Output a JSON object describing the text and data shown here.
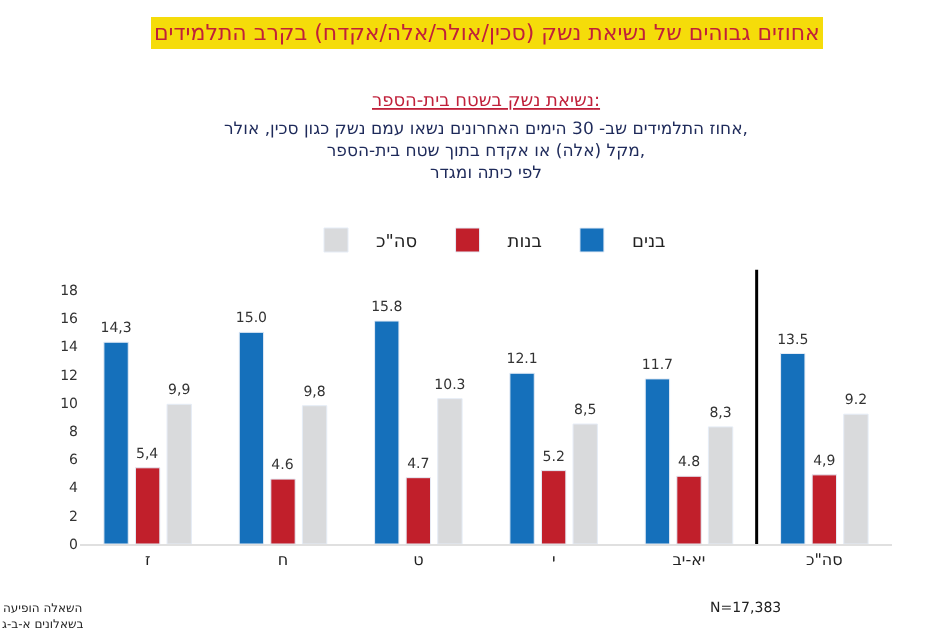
{
  "chart_data": {
    "type": "bar",
    "title": "אחוזים גבוהים של נשיאת נשק (סכין/אולר/אלה/אקדח) בקרב התלמידים",
    "subtitle": "נשיאת נשק בשטח בית-הספר:\nאחוז התלמידים שב- 30 הימים האחרונים נשאו עמם נשק כגון סכין, אולר,\nמקל (אלה) או אקדח בתוך שטח בית-הספר,\nלפי כיתה ומגדר",
    "categories": [
      "ז",
      "ח",
      "ט",
      "י",
      "יא-יב",
      "סה\"כ"
    ],
    "series": [
      {
        "name": "בנים",
        "color": "#1570bb",
        "values": [
          14.3,
          15.0,
          15.8,
          12.1,
          11.7,
          13.5
        ],
        "value_labels": [
          "14,3",
          "15.0",
          "15.8",
          "12.1",
          "11.7",
          "13.5"
        ]
      },
      {
        "name": "בנות",
        "color": "#c11f2b",
        "values": [
          5.4,
          4.6,
          4.7,
          5.2,
          4.8,
          4.9
        ],
        "value_labels": [
          "5,4",
          "4.6",
          "4.7",
          "5.2",
          "4.8",
          "4,9"
        ]
      },
      {
        "name": "סה\"כ",
        "color": "#d9dadc",
        "values": [
          9.9,
          9.8,
          10.3,
          8.5,
          8.3,
          9.2
        ],
        "value_labels": [
          "9,9",
          "9,8",
          "10.3",
          "8,5",
          "8,3",
          "9.2"
        ]
      }
    ],
    "ylim": [
      0,
      18
    ],
    "yticks": [
      0,
      2,
      4,
      6,
      8,
      10,
      12,
      14,
      16,
      18
    ],
    "grid": false,
    "legend": "top",
    "annotations": [
      "השאלה הופיעה\nבשאלונים א-ב-ג",
      "N=17,383"
    ]
  }
}
